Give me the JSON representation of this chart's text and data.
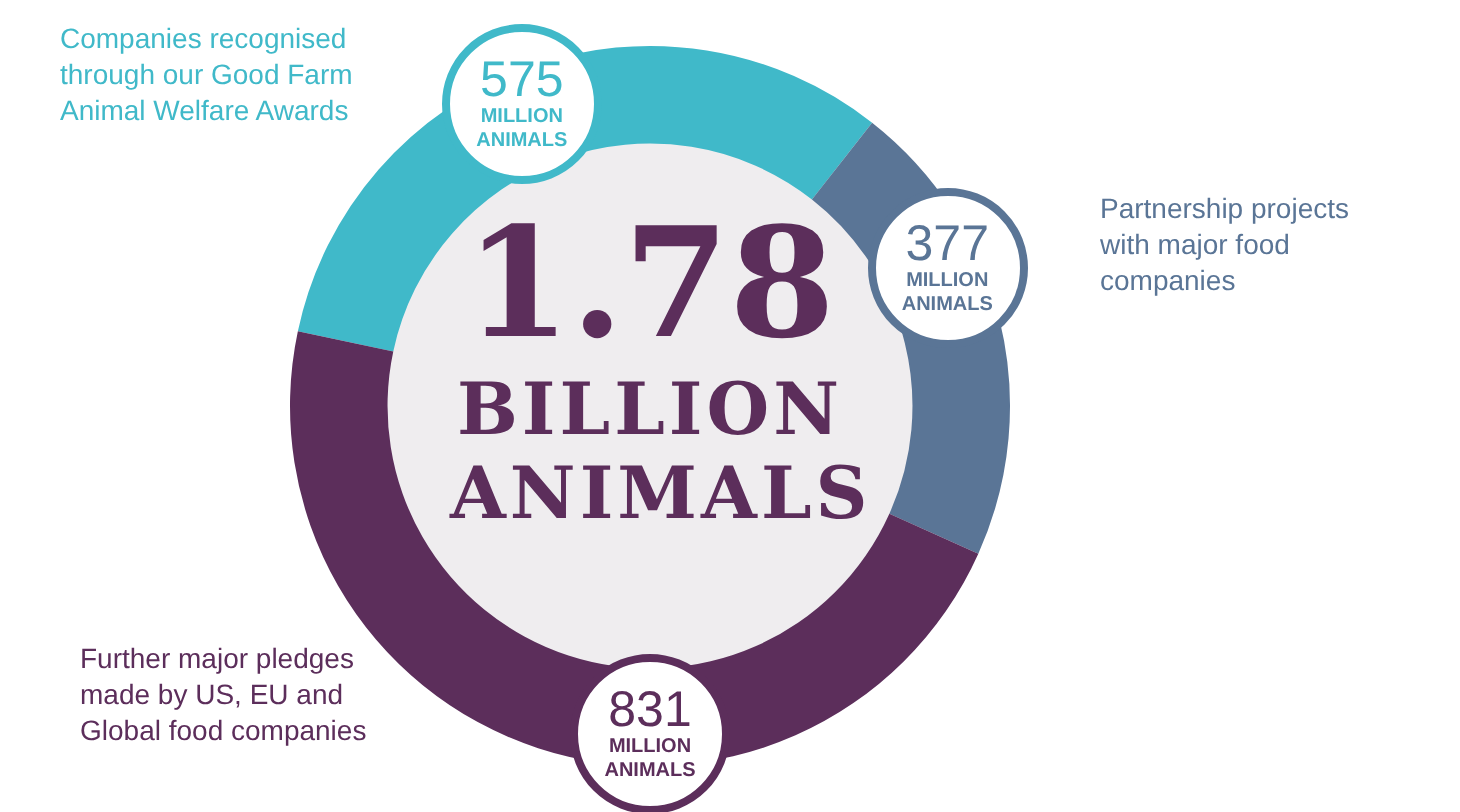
{
  "chart_data": {
    "type": "donut",
    "title": "1.78 BILLION ANIMALS",
    "categories": [
      "Companies recognised through our Good Farm Animal Welfare Awards",
      "Partnership projects with major food companies",
      "Further major pledges made by US, EU and Global food companies"
    ],
    "values": [
      575,
      377,
      831
    ],
    "colors": [
      "#40b9c9",
      "#5a7596",
      "#5c2e5b"
    ],
    "value_labels": [
      "575 MILLION ANIMALS",
      "377 MILLION ANIMALS",
      "831 MILLION ANIMALS"
    ],
    "legend": false
  }
}
